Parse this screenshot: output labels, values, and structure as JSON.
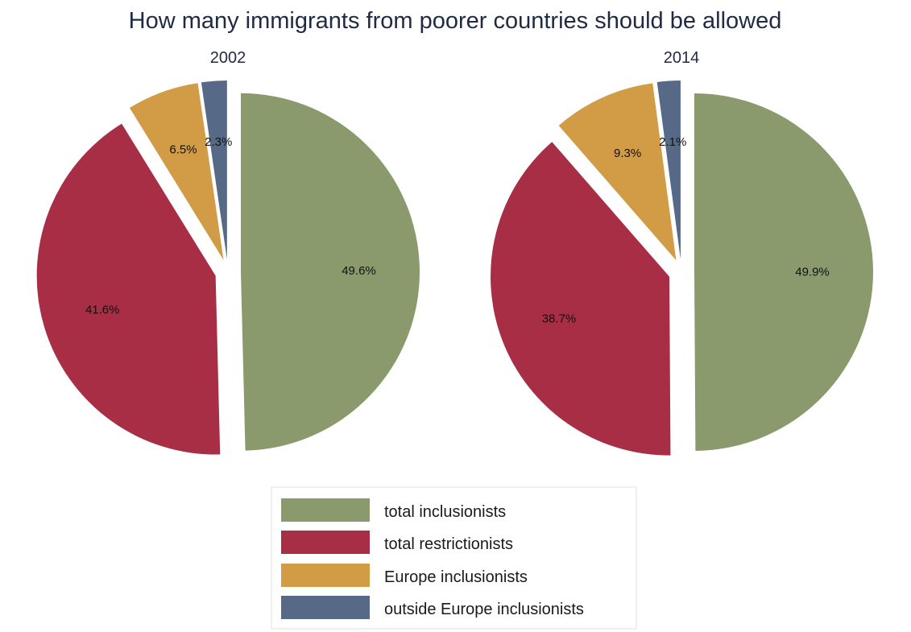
{
  "chart_data": {
    "type": "pie",
    "title": "How many immigrants from poorer countries should be allowed",
    "categories": [
      "total inclusionists",
      "total restrictionists",
      "Europe inclusionists",
      "outside Europe inclusionists"
    ],
    "colors": [
      "#8a9a6c",
      "#a82e45",
      "#d29c47",
      "#566a88"
    ],
    "pies": [
      {
        "title": "2002",
        "values": [
          49.6,
          41.6,
          6.5,
          2.3
        ],
        "labels": [
          "49.6%",
          "41.6%",
          "6.5%",
          "2.3%"
        ]
      },
      {
        "title": "2014",
        "values": [
          49.9,
          38.7,
          9.3,
          2.1
        ],
        "labels": [
          "49.9%",
          "38.7%",
          "9.3%",
          "2.1%"
        ]
      }
    ],
    "exploded": true,
    "start_angle": "12 o'clock",
    "direction": "clockwise",
    "legend_position": "bottom"
  }
}
